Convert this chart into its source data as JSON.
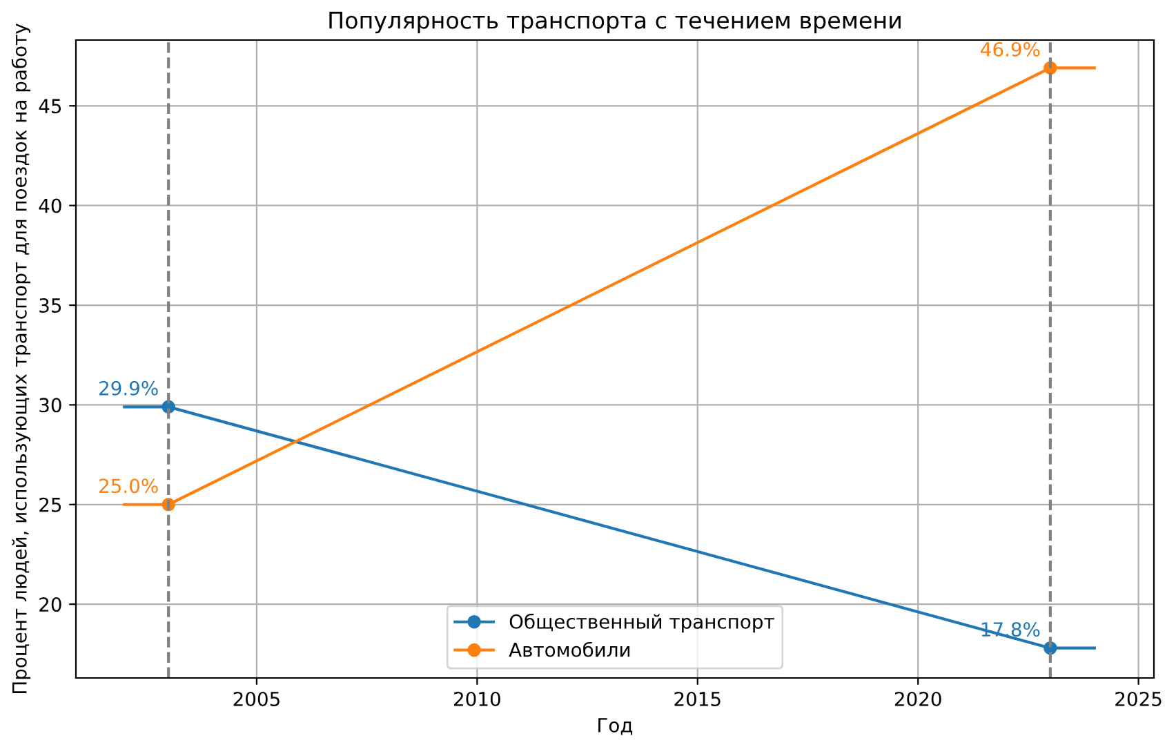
{
  "chart_data": {
    "type": "line",
    "title": "Популярность транспорта с течением времени",
    "xlabel": "Год",
    "ylabel": "Процент людей, использующих транспорт для поездок на работу",
    "series": [
      {
        "name": "Общественный транспорт",
        "color": "#1f77b4",
        "x": [
          2002,
          2003,
          2023,
          2024
        ],
        "values": [
          29.9,
          29.9,
          17.8,
          17.8
        ],
        "value_labels": [
          null,
          "29.9%",
          "17.8%",
          null
        ]
      },
      {
        "name": "Автомобили",
        "color": "#ff7f0e",
        "x": [
          2002,
          2003,
          2023,
          2024
        ],
        "values": [
          25.0,
          25.0,
          46.9,
          46.9
        ],
        "value_labels": [
          null,
          "25.0%",
          "46.9%",
          null
        ]
      }
    ],
    "ref_lines": [
      {
        "axis": "x",
        "value": 2003,
        "color": "#808080",
        "line_style": "dashed"
      },
      {
        "axis": "x",
        "value": 2023,
        "color": "#808080",
        "line_style": "dashed"
      }
    ],
    "xlim": [
      2000.9,
      2025.35
    ],
    "xticks": [
      2005,
      2010,
      2015,
      2020,
      2025
    ],
    "ylim": [
      16.3,
      48.3
    ],
    "yticks": [
      20,
      25,
      30,
      35,
      40,
      45
    ],
    "grid": true,
    "legend": "bottom",
    "marker": "circle",
    "line_style": "solid"
  }
}
